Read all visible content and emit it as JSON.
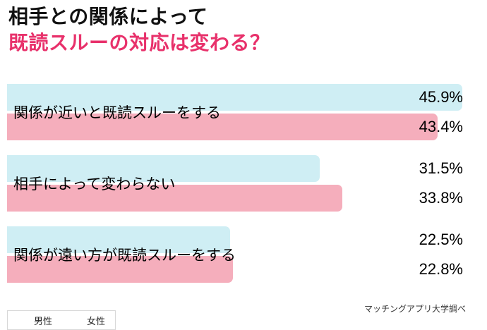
{
  "header": {
    "title_line1": "相手との関係によって",
    "title_line2": "既読スルーの対応は変わる？",
    "accent_color": "#e8316b"
  },
  "chart_data": {
    "type": "bar",
    "orientation": "horizontal",
    "title": "相手との関係によって既読スルーの対応は変わる？",
    "categories": [
      "関係が近いと既読スルーをする",
      "相手によって変わらない",
      "関係が遠い方が既読スルーをする"
    ],
    "series": [
      {
        "name": "男性",
        "color": "#cfeef4",
        "values": [
          45.9,
          31.5,
          22.5
        ]
      },
      {
        "name": "女性",
        "color": "#f5aebc",
        "values": [
          43.4,
          33.8,
          22.8
        ]
      }
    ],
    "value_suffix": "%",
    "xlim": [
      0,
      47.7
    ],
    "grid": false,
    "legend_position": "bottom-left"
  },
  "legend": {
    "items": [
      {
        "label": "男性",
        "color": "#cfeef4"
      },
      {
        "label": "女性",
        "color": "#f5aebc"
      }
    ]
  },
  "source": "マッチングアプリ大学調べ"
}
